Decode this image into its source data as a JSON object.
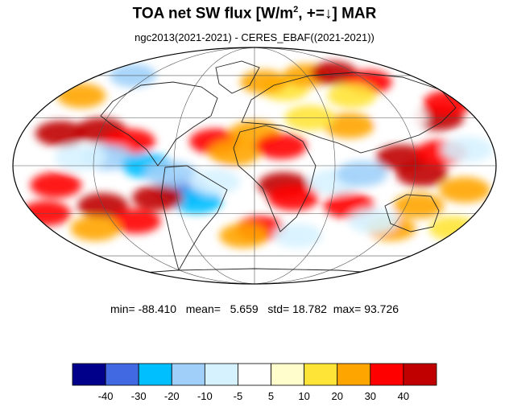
{
  "title": {
    "prefix": "TOA net SW flux [W/m",
    "exponent": "2",
    "suffix": ", +=↓]  MAR"
  },
  "subtitle": "ngc2013(2021-2021) - CERES_EBAF((2021-2021))",
  "stats": {
    "min_label": "min=",
    "min": "-88.410",
    "mean_label": "mean=",
    "mean": "5.659",
    "std_label": "std=",
    "std": "18.782",
    "max_label": "max=",
    "max": "93.726"
  },
  "chart_data": {
    "type": "heatmap",
    "projection": "Mollweide",
    "variable": "TOA net SW flux difference (model minus observations)",
    "field_blobs": [
      {
        "lon": -150,
        "lat": 20,
        "value": 40
      },
      {
        "lon": -120,
        "lat": 22,
        "value": 40
      },
      {
        "lon": -95,
        "lat": 15,
        "value": 30
      },
      {
        "lon": -150,
        "lat": -12,
        "value": 30
      },
      {
        "lon": -120,
        "lat": -25,
        "value": 40
      },
      {
        "lon": -100,
        "lat": -35,
        "value": 30
      },
      {
        "lon": -160,
        "lat": 45,
        "value": 20
      },
      {
        "lon": -140,
        "lat": -40,
        "value": 20
      },
      {
        "lon": -110,
        "lat": 5,
        "value": -20
      },
      {
        "lon": -80,
        "lat": 0,
        "value": -30
      },
      {
        "lon": -130,
        "lat": 5,
        "value": -10
      },
      {
        "lon": -140,
        "lat": 60,
        "value": -20
      },
      {
        "lon": -55,
        "lat": -15,
        "value": -40
      },
      {
        "lon": -45,
        "lat": -22,
        "value": -30
      },
      {
        "lon": -62,
        "lat": -5,
        "value": -20
      },
      {
        "lon": -75,
        "lat": -20,
        "value": 40
      },
      {
        "lon": -30,
        "lat": 15,
        "value": 30
      },
      {
        "lon": -15,
        "lat": 8,
        "value": 20
      },
      {
        "lon": -30,
        "lat": -10,
        "value": -10
      },
      {
        "lon": 0,
        "lat": 20,
        "value": 20
      },
      {
        "lon": 20,
        "lat": 12,
        "value": 30
      },
      {
        "lon": 22,
        "lat": -12,
        "value": 40
      },
      {
        "lon": 30,
        "lat": -20,
        "value": 30
      },
      {
        "lon": 5,
        "lat": -40,
        "value": 30
      },
      {
        "lon": -10,
        "lat": -45,
        "value": 20
      },
      {
        "lon": 30,
        "lat": 50,
        "value": 10
      },
      {
        "lon": 10,
        "lat": 55,
        "value": 20
      },
      {
        "lon": 60,
        "lat": 60,
        "value": 20
      },
      {
        "lon": 95,
        "lat": 62,
        "value": 40
      },
      {
        "lon": 120,
        "lat": 55,
        "value": 30
      },
      {
        "lon": 75,
        "lat": 25,
        "value": 20
      },
      {
        "lon": 60,
        "lat": -10,
        "value": -10
      },
      {
        "lon": 80,
        "lat": -5,
        "value": -20
      },
      {
        "lon": 75,
        "lat": -25,
        "value": 30
      },
      {
        "lon": 110,
        "lat": 5,
        "value": 40
      },
      {
        "lon": 125,
        "lat": -5,
        "value": 40
      },
      {
        "lon": 140,
        "lat": 8,
        "value": 30
      },
      {
        "lon": 150,
        "lat": 30,
        "value": 40
      },
      {
        "lon": 160,
        "lat": -15,
        "value": 20
      },
      {
        "lon": 130,
        "lat": -25,
        "value": 20
      },
      {
        "lon": 120,
        "lat": -40,
        "value": 20
      },
      {
        "lon": 100,
        "lat": -35,
        "value": -10
      },
      {
        "lon": 170,
        "lat": 40,
        "value": 30
      },
      {
        "lon": 160,
        "lat": 10,
        "value": -10
      },
      {
        "lon": 120,
        "lat": 30,
        "value": -5
      },
      {
        "lon": 40,
        "lat": -45,
        "value": -10
      },
      {
        "lon": -170,
        "lat": -30,
        "value": 30
      },
      {
        "lon": 175,
        "lat": -40,
        "value": 10
      },
      {
        "lon": 90,
        "lat": 45,
        "value": 10
      },
      {
        "lon": 45,
        "lat": 30,
        "value": 10
      }
    ],
    "colorbar": {
      "levels": [
        -40,
        -30,
        -20,
        -10,
        -5,
        5,
        10,
        20,
        30,
        40
      ],
      "colors": [
        "#00008B",
        "#4169E1",
        "#00BFFF",
        "#A0D0FA",
        "#D6F2FF",
        "#FFFFFF",
        "#FFFDCB",
        "#FFE438",
        "#FFA500",
        "#FF0000",
        "#C00000"
      ]
    },
    "graticule": {
      "parallels": [
        -60,
        -30,
        0,
        30,
        60
      ],
      "meridians": [
        -120,
        -60,
        0,
        60,
        120
      ]
    }
  }
}
